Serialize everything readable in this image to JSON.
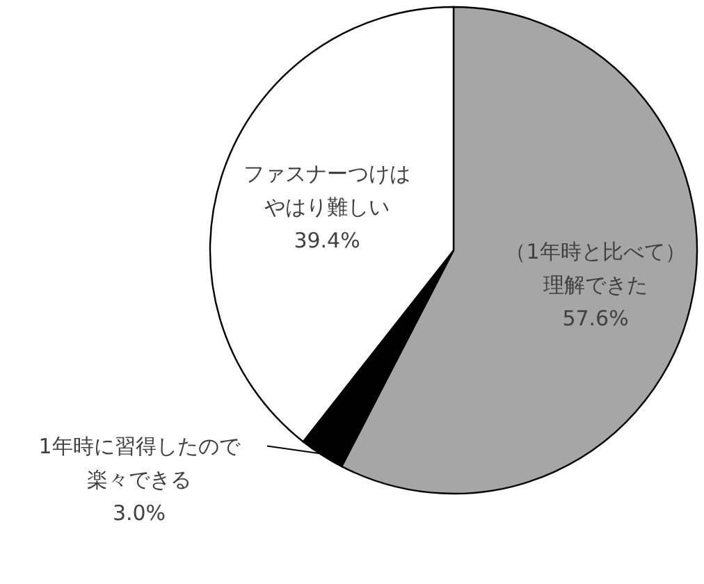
{
  "chart_data": {
    "type": "pie",
    "categories": [
      "（1年時と比べて）理解できた",
      "1年時に習得したので楽々できる",
      "ファスナーつけはやはり難しい"
    ],
    "values": [
      57.6,
      3.0,
      39.4
    ],
    "colors": [
      "#a6a6a6",
      "#000000",
      "#ffffff"
    ],
    "value_labels": [
      "57.6%",
      "3.0%",
      "39.4%"
    ]
  }
}
